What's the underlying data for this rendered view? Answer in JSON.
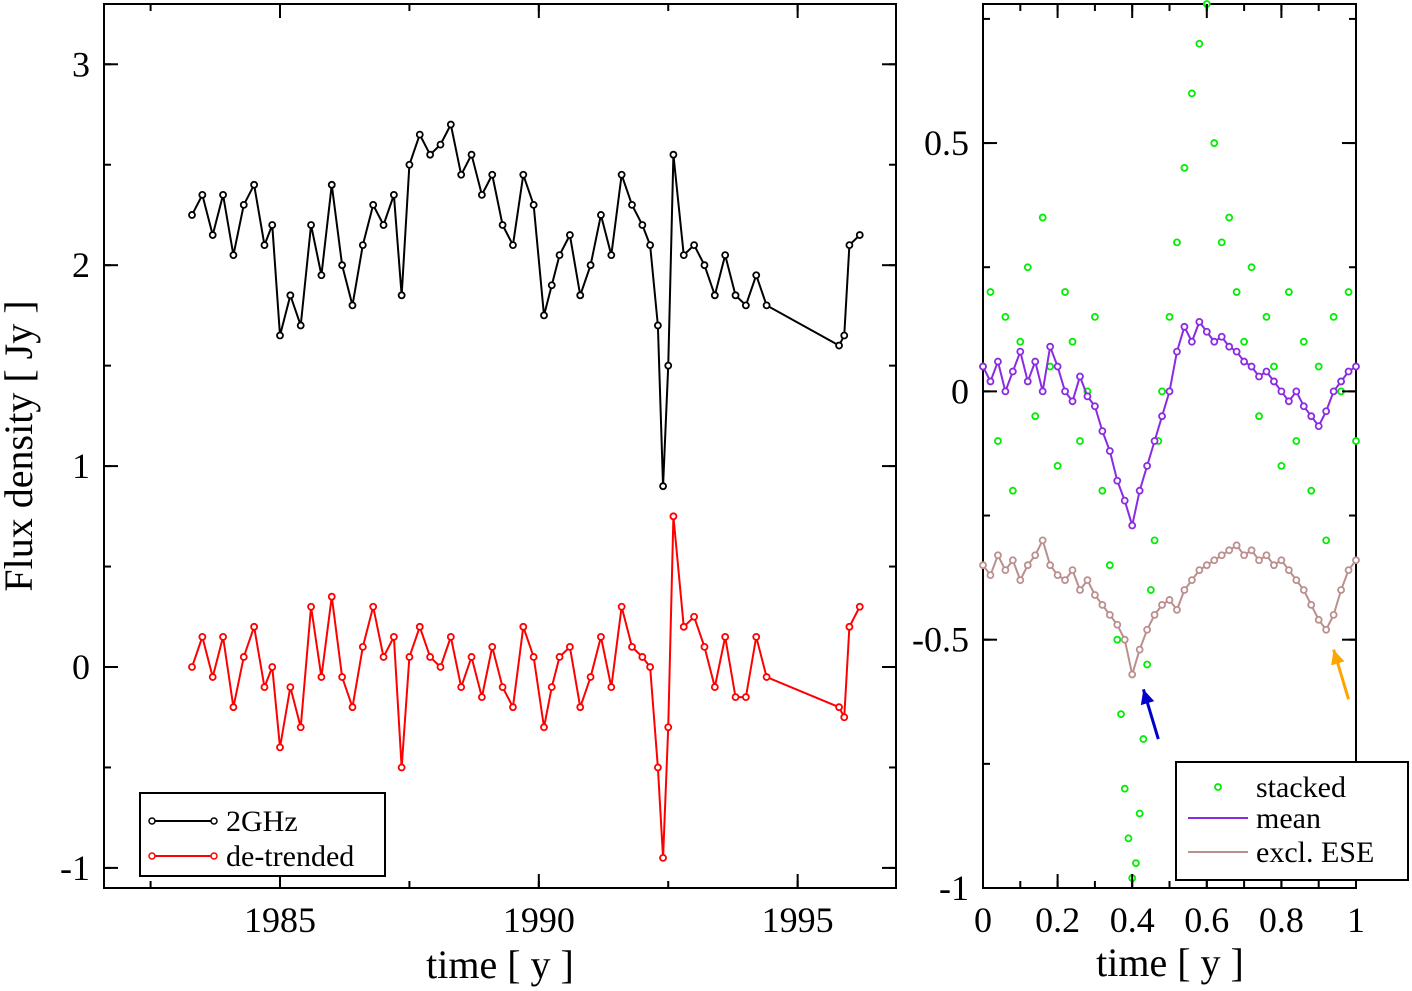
{
  "chart_data": [
    {
      "type": "line",
      "xlabel": "time [ y ]",
      "ylabel": "Flux density [ Jy ]",
      "xlim": [
        1981.6,
        1996.9
      ],
      "ylim": [
        -1.1,
        3.3
      ],
      "xticks": [
        1985,
        1990,
        1995
      ],
      "yticks": [
        -1,
        0,
        1,
        2,
        3
      ],
      "xtick_labels": [
        "1985",
        "1990",
        "1995"
      ],
      "ytick_labels": [
        "-1",
        "0",
        "1",
        "2",
        "3"
      ],
      "legend_position": "bottom-left",
      "series": [
        {
          "name": "2GHz",
          "color": "#000000",
          "x": [
            1983.3,
            1983.5,
            1983.7,
            1983.9,
            1984.1,
            1984.3,
            1984.5,
            1984.7,
            1984.85,
            1985.0,
            1985.2,
            1985.4,
            1985.6,
            1985.8,
            1986.0,
            1986.2,
            1986.4,
            1986.6,
            1986.8,
            1987.0,
            1987.2,
            1987.35,
            1987.5,
            1987.7,
            1987.9,
            1988.1,
            1988.3,
            1988.5,
            1988.7,
            1988.9,
            1989.1,
            1989.3,
            1989.5,
            1989.7,
            1989.9,
            1990.1,
            1990.25,
            1990.4,
            1990.6,
            1990.8,
            1991.0,
            1991.2,
            1991.4,
            1991.6,
            1991.8,
            1992.0,
            1992.15,
            1992.3,
            1992.4,
            1992.5,
            1992.6,
            1992.8,
            1993.0,
            1993.2,
            1993.4,
            1993.6,
            1993.8,
            1994.0,
            1994.2,
            1994.4,
            1995.8,
            1995.9,
            1996.0,
            1996.2
          ],
          "values": [
            2.25,
            2.35,
            2.15,
            2.35,
            2.05,
            2.3,
            2.4,
            2.1,
            2.2,
            1.65,
            1.85,
            1.7,
            2.2,
            1.95,
            2.4,
            2.0,
            1.8,
            2.1,
            2.3,
            2.2,
            2.35,
            1.85,
            2.5,
            2.65,
            2.55,
            2.6,
            2.7,
            2.45,
            2.55,
            2.35,
            2.45,
            2.2,
            2.1,
            2.45,
            2.3,
            1.75,
            1.9,
            2.05,
            2.15,
            1.85,
            2.0,
            2.25,
            2.05,
            2.45,
            2.3,
            2.2,
            2.1,
            1.7,
            0.9,
            1.5,
            2.55,
            2.05,
            2.1,
            2.0,
            1.85,
            2.05,
            1.85,
            1.8,
            1.95,
            1.8,
            1.6,
            1.65,
            2.1,
            2.15
          ]
        },
        {
          "name": "de-trended",
          "color": "#ff0000",
          "x": [
            1983.3,
            1983.5,
            1983.7,
            1983.9,
            1984.1,
            1984.3,
            1984.5,
            1984.7,
            1984.85,
            1985.0,
            1985.2,
            1985.4,
            1985.6,
            1985.8,
            1986.0,
            1986.2,
            1986.4,
            1986.6,
            1986.8,
            1987.0,
            1987.2,
            1987.35,
            1987.5,
            1987.7,
            1987.9,
            1988.1,
            1988.3,
            1988.5,
            1988.7,
            1988.9,
            1989.1,
            1989.3,
            1989.5,
            1989.7,
            1989.9,
            1990.1,
            1990.25,
            1990.4,
            1990.6,
            1990.8,
            1991.0,
            1991.2,
            1991.4,
            1991.6,
            1991.8,
            1992.0,
            1992.15,
            1992.3,
            1992.4,
            1992.5,
            1992.6,
            1992.8,
            1993.0,
            1993.2,
            1993.4,
            1993.6,
            1993.8,
            1994.0,
            1994.2,
            1994.4,
            1995.8,
            1995.9,
            1996.0,
            1996.2
          ],
          "values": [
            0.0,
            0.15,
            -0.05,
            0.15,
            -0.2,
            0.05,
            0.2,
            -0.1,
            0.0,
            -0.4,
            -0.1,
            -0.3,
            0.3,
            -0.05,
            0.35,
            -0.05,
            -0.2,
            0.1,
            0.3,
            0.05,
            0.15,
            -0.5,
            0.05,
            0.2,
            0.05,
            0.0,
            0.15,
            -0.1,
            0.05,
            -0.15,
            0.1,
            -0.1,
            -0.2,
            0.2,
            0.05,
            -0.3,
            -0.1,
            0.05,
            0.1,
            -0.2,
            -0.05,
            0.15,
            -0.1,
            0.3,
            0.1,
            0.05,
            0.0,
            -0.5,
            -0.95,
            -0.3,
            0.75,
            0.2,
            0.25,
            0.1,
            -0.1,
            0.15,
            -0.15,
            -0.15,
            0.15,
            -0.05,
            -0.2,
            -0.25,
            0.2,
            0.3
          ]
        }
      ]
    },
    {
      "type": "scatter",
      "xlabel": "time [ y ]",
      "ylabel": "",
      "xlim": [
        0,
        1
      ],
      "ylim": [
        -1,
        0.78
      ],
      "xticks": [
        0,
        0.2,
        0.4,
        0.6,
        0.8,
        1
      ],
      "yticks": [
        -1,
        -0.5,
        0,
        0.5
      ],
      "xtick_labels": [
        "0",
        "0.2",
        "0.4",
        "0.6",
        "0.8",
        "1"
      ],
      "ytick_labels": [
        "-1",
        "-0.5",
        "0",
        "0.5"
      ],
      "legend_position": "bottom-right",
      "series": [
        {
          "name": "stacked",
          "color": "#00ee00",
          "marker": "circle",
          "x": [
            0.0,
            0.02,
            0.04,
            0.06,
            0.08,
            0.1,
            0.12,
            0.14,
            0.16,
            0.18,
            0.2,
            0.22,
            0.24,
            0.26,
            0.28,
            0.3,
            0.32,
            0.34,
            0.36,
            0.37,
            0.38,
            0.39,
            0.4,
            0.41,
            0.42,
            0.43,
            0.44,
            0.45,
            0.46,
            0.47,
            0.48,
            0.5,
            0.52,
            0.54,
            0.56,
            0.58,
            0.6,
            0.62,
            0.64,
            0.66,
            0.68,
            0.7,
            0.72,
            0.74,
            0.76,
            0.78,
            0.8,
            0.82,
            0.84,
            0.86,
            0.88,
            0.9,
            0.92,
            0.94,
            0.96,
            0.98,
            1.0
          ],
          "values": [
            0.05,
            0.2,
            -0.1,
            0.15,
            -0.2,
            0.1,
            0.25,
            -0.05,
            0.35,
            0.05,
            -0.15,
            0.2,
            0.1,
            -0.1,
            0.0,
            0.15,
            -0.2,
            -0.35,
            -0.5,
            -0.65,
            -0.8,
            -0.9,
            -0.98,
            -0.95,
            -0.85,
            -0.7,
            -0.55,
            -0.4,
            -0.3,
            -0.1,
            0.0,
            0.15,
            0.3,
            0.45,
            0.6,
            0.7,
            0.78,
            0.5,
            0.3,
            0.35,
            0.2,
            0.1,
            0.25,
            -0.05,
            0.15,
            0.05,
            -0.15,
            0.2,
            -0.1,
            0.1,
            -0.2,
            0.05,
            -0.3,
            0.15,
            0.0,
            0.2,
            -0.1
          ]
        },
        {
          "name": "mean",
          "color": "#8a2be2",
          "x": [
            0.0,
            0.02,
            0.04,
            0.06,
            0.08,
            0.1,
            0.12,
            0.14,
            0.16,
            0.18,
            0.2,
            0.22,
            0.24,
            0.26,
            0.28,
            0.3,
            0.32,
            0.34,
            0.36,
            0.38,
            0.4,
            0.42,
            0.44,
            0.46,
            0.48,
            0.5,
            0.52,
            0.54,
            0.56,
            0.58,
            0.6,
            0.62,
            0.64,
            0.66,
            0.68,
            0.7,
            0.72,
            0.74,
            0.76,
            0.78,
            0.8,
            0.82,
            0.84,
            0.86,
            0.88,
            0.9,
            0.92,
            0.94,
            0.96,
            0.98,
            1.0
          ],
          "values": [
            0.05,
            0.02,
            0.06,
            0.0,
            0.04,
            0.08,
            0.02,
            0.06,
            0.0,
            0.09,
            0.05,
            0.0,
            -0.02,
            0.03,
            -0.01,
            -0.03,
            -0.08,
            -0.12,
            -0.18,
            -0.22,
            -0.27,
            -0.2,
            -0.15,
            -0.1,
            -0.05,
            0.0,
            0.08,
            0.13,
            0.1,
            0.14,
            0.12,
            0.1,
            0.11,
            0.09,
            0.08,
            0.06,
            0.05,
            0.03,
            0.04,
            0.02,
            0.0,
            -0.02,
            0.0,
            -0.03,
            -0.05,
            -0.07,
            -0.04,
            0.0,
            0.02,
            0.04,
            0.05
          ]
        },
        {
          "name": "excl. ESE",
          "color": "#bc8f8f",
          "x": [
            0.0,
            0.02,
            0.04,
            0.06,
            0.08,
            0.1,
            0.12,
            0.14,
            0.16,
            0.18,
            0.2,
            0.22,
            0.24,
            0.26,
            0.28,
            0.3,
            0.32,
            0.34,
            0.36,
            0.38,
            0.4,
            0.42,
            0.44,
            0.46,
            0.48,
            0.5,
            0.52,
            0.54,
            0.56,
            0.58,
            0.6,
            0.62,
            0.64,
            0.66,
            0.68,
            0.7,
            0.72,
            0.74,
            0.76,
            0.78,
            0.8,
            0.82,
            0.84,
            0.86,
            0.88,
            0.9,
            0.92,
            0.94,
            0.96,
            0.98,
            1.0
          ],
          "values": [
            -0.35,
            -0.37,
            -0.33,
            -0.36,
            -0.34,
            -0.38,
            -0.35,
            -0.33,
            -0.3,
            -0.35,
            -0.37,
            -0.38,
            -0.36,
            -0.4,
            -0.38,
            -0.41,
            -0.43,
            -0.45,
            -0.47,
            -0.5,
            -0.57,
            -0.52,
            -0.48,
            -0.45,
            -0.43,
            -0.42,
            -0.44,
            -0.4,
            -0.38,
            -0.36,
            -0.35,
            -0.34,
            -0.33,
            -0.32,
            -0.31,
            -0.33,
            -0.32,
            -0.34,
            -0.33,
            -0.35,
            -0.34,
            -0.36,
            -0.38,
            -0.4,
            -0.43,
            -0.46,
            -0.48,
            -0.45,
            -0.4,
            -0.36,
            -0.34
          ]
        }
      ],
      "annotations": [
        {
          "type": "arrow",
          "color": "#0000cc",
          "from": [
            0.47,
            -0.7
          ],
          "to": [
            0.43,
            -0.6
          ]
        },
        {
          "type": "arrow",
          "color": "#ffa500",
          "from": [
            0.98,
            -0.62
          ],
          "to": [
            0.94,
            -0.52
          ]
        }
      ]
    }
  ]
}
